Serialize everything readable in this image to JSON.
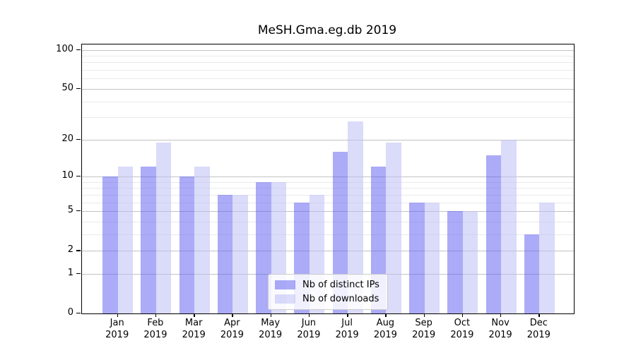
{
  "chart_data": {
    "type": "bar",
    "title": "MeSH.Gma.eg.db 2019",
    "x_year": "2019",
    "categories": [
      "Jan",
      "Feb",
      "Mar",
      "Apr",
      "May",
      "Jun",
      "Jul",
      "Aug",
      "Sep",
      "Oct",
      "Nov",
      "Dec"
    ],
    "series": [
      {
        "name": "Nb of distinct IPs",
        "color": "#5858F080",
        "blended_hex": "#ABABF7",
        "values": [
          10,
          12,
          10,
          7,
          9,
          6,
          16,
          12,
          6,
          5,
          15,
          3
        ]
      },
      {
        "name": "Nb of downloads",
        "color": "#BEBEF58C",
        "blended_hex": "#DCDCF8",
        "values": [
          12,
          19,
          12,
          7,
          9,
          7,
          28,
          19,
          6,
          5,
          20,
          6
        ]
      }
    ],
    "y_axis": {
      "scale": "log1p",
      "major_ticks": [
        0,
        1,
        2,
        5,
        10,
        20,
        50,
        100
      ],
      "minor_gridlines": [
        3,
        4,
        6,
        7,
        8,
        9,
        30,
        40,
        60,
        70,
        80,
        90
      ],
      "max_value": 110
    },
    "xlabel": "",
    "ylabel": "",
    "grid": true,
    "legend_position": "lower center",
    "colors": {
      "spine": "#000000",
      "grid_major": "#c3c3c3",
      "grid_minor": "#eaeaea",
      "background": "#ffffff"
    }
  }
}
